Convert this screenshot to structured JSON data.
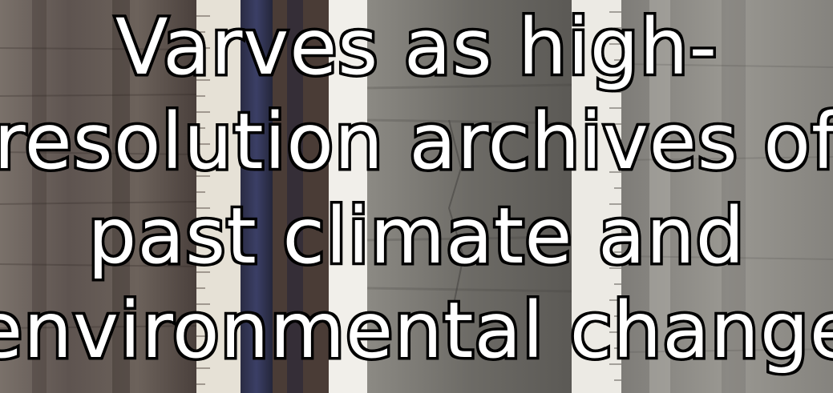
{
  "title": {
    "lines": [
      "Varves as high-",
      "resolution archives of",
      "past climate and",
      "environmental change"
    ]
  }
}
